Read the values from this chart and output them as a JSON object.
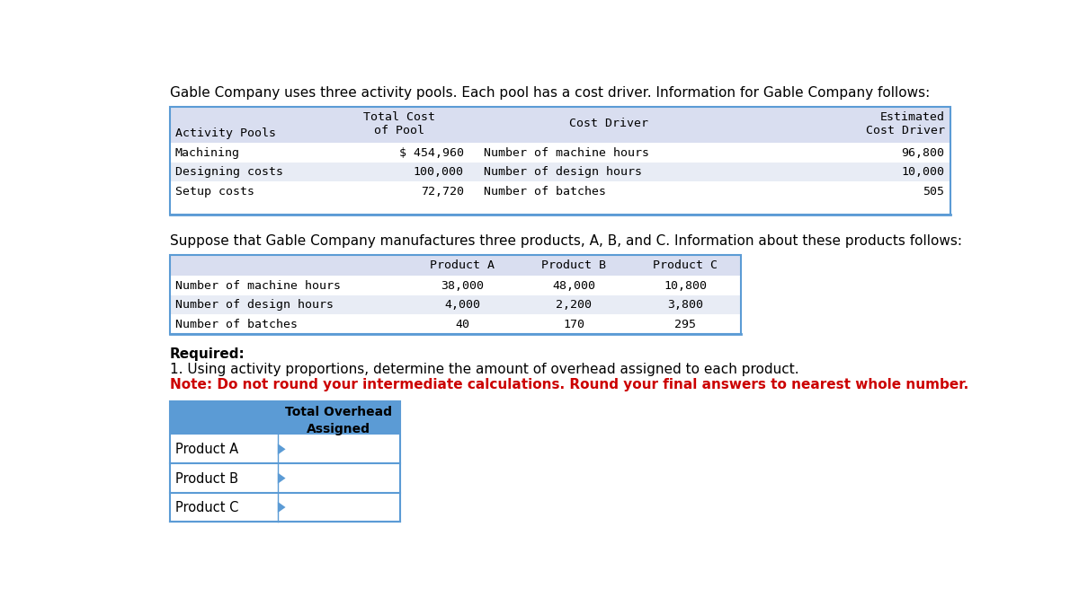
{
  "intro_text": "Gable Company uses three activity pools. Each pool has a cost driver. Information for Gable Company follows:",
  "table1_rows": [
    [
      "Machining",
      "$ 454,960",
      "Number of machine hours",
      "96,800"
    ],
    [
      "Designing costs",
      "100,000",
      "Number of design hours",
      "10,000"
    ],
    [
      "Setup costs",
      "72,720",
      "Number of batches",
      "505"
    ]
  ],
  "middle_text": "Suppose that Gable Company manufactures three products, A, B, and C. Information about these products follows:",
  "table2_rows": [
    [
      "Number of machine hours",
      "38,000",
      "48,000",
      "10,800"
    ],
    [
      "Number of design hours",
      "4,000",
      "2,200",
      "3,800"
    ],
    [
      "Number of batches",
      "40",
      "170",
      "295"
    ]
  ],
  "required_text": "Required:",
  "item1_text": "1. Using activity proportions, determine the amount of overhead assigned to each product.",
  "note_text": "Note: Do not round your intermediate calculations. Round your final answers to nearest whole number.",
  "table3_header": "Total Overhead\nAssigned",
  "table3_rows": [
    "Product A",
    "Product B",
    "Product C"
  ],
  "header_bg_dark": "#5B9BD5",
  "header_bg_light": "#D9DEF0",
  "row_bg_white": "#FFFFFF",
  "row_bg_alt": "#E8ECF5",
  "table_border_color": "#5B9BD5",
  "separator_color": "#5B9BD5",
  "text_color": "#000000",
  "note_color": "#CC0000",
  "mono_font": "DejaVu Sans Mono"
}
